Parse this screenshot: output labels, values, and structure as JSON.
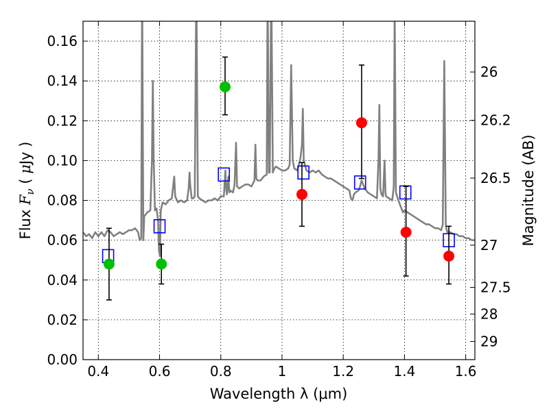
{
  "chart_data": {
    "type": "scatter",
    "xlabel": "Wavelength  λ (μm)",
    "ylabel": "Flux  F_ν  ( μJy )",
    "ylabel_parts": [
      "Flux ",
      "F",
      "ν",
      "  ( ",
      "μ",
      "Jy )"
    ],
    "y2label": "Magnitude (AB)",
    "xlim": [
      0.35,
      1.63
    ],
    "ylim": [
      0.0,
      0.17
    ],
    "grid": true,
    "xticks": [
      0.4,
      0.6,
      0.8,
      1.0,
      1.2,
      1.4,
      1.6
    ],
    "xtick_labels": [
      "0.4",
      "0.6",
      "0.8",
      "1",
      "1.2",
      "1.4",
      "1.6"
    ],
    "yticks": [
      0.0,
      0.02,
      0.04,
      0.06,
      0.08,
      0.1,
      0.12,
      0.14,
      0.16
    ],
    "ytick_labels": [
      "0.00",
      "0.02",
      "0.04",
      "0.06",
      "0.08",
      "0.10",
      "0.12",
      "0.14",
      "0.16"
    ],
    "mag_ticks": [
      {
        "label": "26",
        "flux": 0.1445
      },
      {
        "label": "26.2",
        "flux": 0.1202
      },
      {
        "label": "26.5",
        "flux": 0.0912
      },
      {
        "label": "27",
        "flux": 0.0575
      },
      {
        "label": "27.5",
        "flux": 0.0363
      },
      {
        "label": "28",
        "flux": 0.0229
      },
      {
        "label": "29",
        "flux": 0.0091
      }
    ],
    "colors": {
      "spectrum": "#808080",
      "green": "#00c000",
      "red": "#ff0000",
      "model": "#0000ff",
      "errorbar": "#000000"
    },
    "series": [
      {
        "marker": "green-circle",
        "points": [
          {
            "x": 0.435,
            "y": 0.048,
            "yerr_low": 0.03,
            "yerr_high": 0.066
          },
          {
            "x": 0.606,
            "y": 0.048,
            "yerr_low": 0.038,
            "yerr_high": 0.058
          },
          {
            "x": 0.814,
            "y": 0.137,
            "yerr_low": 0.123,
            "yerr_high": 0.152
          }
        ]
      },
      {
        "marker": "red-circle",
        "points": [
          {
            "x": 1.065,
            "y": 0.083,
            "yerr_low": 0.067,
            "yerr_high": 0.099
          },
          {
            "x": 1.26,
            "y": 0.119,
            "yerr_low": 0.091,
            "yerr_high": 0.148
          },
          {
            "x": 1.405,
            "y": 0.064,
            "yerr_low": 0.042,
            "yerr_high": 0.087
          },
          {
            "x": 1.545,
            "y": 0.052,
            "yerr_low": 0.038,
            "yerr_high": 0.067
          }
        ]
      },
      {
        "marker": "blue-open-square",
        "points": [
          {
            "x": 0.432,
            "y": 0.052
          },
          {
            "x": 0.6,
            "y": 0.067
          },
          {
            "x": 0.81,
            "y": 0.093
          },
          {
            "x": 1.07,
            "y": 0.094
          },
          {
            "x": 1.255,
            "y": 0.089
          },
          {
            "x": 1.403,
            "y": 0.084
          },
          {
            "x": 1.545,
            "y": 0.06
          }
        ]
      }
    ],
    "spectrum": [
      [
        0.35,
        0.064
      ],
      [
        0.36,
        0.062
      ],
      [
        0.37,
        0.063
      ],
      [
        0.38,
        0.061
      ],
      [
        0.39,
        0.064
      ],
      [
        0.4,
        0.062
      ],
      [
        0.41,
        0.064
      ],
      [
        0.42,
        0.062
      ],
      [
        0.43,
        0.065
      ],
      [
        0.44,
        0.064
      ],
      [
        0.45,
        0.062
      ],
      [
        0.46,
        0.063
      ],
      [
        0.47,
        0.064
      ],
      [
        0.48,
        0.063
      ],
      [
        0.49,
        0.064
      ],
      [
        0.5,
        0.065
      ],
      [
        0.51,
        0.065
      ],
      [
        0.52,
        0.066
      ],
      [
        0.53,
        0.064
      ],
      [
        0.535,
        0.06
      ],
      [
        0.54,
        0.061
      ],
      [
        0.543,
        0.19
      ],
      [
        0.547,
        0.06
      ],
      [
        0.55,
        0.072
      ],
      [
        0.56,
        0.074
      ],
      [
        0.57,
        0.075
      ],
      [
        0.575,
        0.1
      ],
      [
        0.578,
        0.14
      ],
      [
        0.581,
        0.1
      ],
      [
        0.585,
        0.075
      ],
      [
        0.59,
        0.076
      ],
      [
        0.595,
        0.07
      ],
      [
        0.598,
        0.055
      ],
      [
        0.601,
        0.052
      ],
      [
        0.604,
        0.075
      ],
      [
        0.61,
        0.079
      ],
      [
        0.62,
        0.078
      ],
      [
        0.63,
        0.08
      ],
      [
        0.64,
        0.081
      ],
      [
        0.645,
        0.088
      ],
      [
        0.648,
        0.092
      ],
      [
        0.651,
        0.082
      ],
      [
        0.66,
        0.079
      ],
      [
        0.67,
        0.08
      ],
      [
        0.68,
        0.079
      ],
      [
        0.69,
        0.08
      ],
      [
        0.695,
        0.086
      ],
      [
        0.698,
        0.094
      ],
      [
        0.7,
        0.088
      ],
      [
        0.705,
        0.081
      ],
      [
        0.71,
        0.081
      ],
      [
        0.715,
        0.082
      ],
      [
        0.72,
        0.19
      ],
      [
        0.725,
        0.082
      ],
      [
        0.73,
        0.081
      ],
      [
        0.74,
        0.08
      ],
      [
        0.75,
        0.079
      ],
      [
        0.76,
        0.08
      ],
      [
        0.77,
        0.08
      ],
      [
        0.78,
        0.081
      ],
      [
        0.79,
        0.08
      ],
      [
        0.8,
        0.082
      ],
      [
        0.81,
        0.082
      ],
      [
        0.815,
        0.095
      ],
      [
        0.818,
        0.085
      ],
      [
        0.82,
        0.083
      ],
      [
        0.825,
        0.092
      ],
      [
        0.828,
        0.084
      ],
      [
        0.83,
        0.085
      ],
      [
        0.84,
        0.084
      ],
      [
        0.845,
        0.088
      ],
      [
        0.85,
        0.109
      ],
      [
        0.853,
        0.087
      ],
      [
        0.86,
        0.086
      ],
      [
        0.87,
        0.087
      ],
      [
        0.88,
        0.088
      ],
      [
        0.89,
        0.088
      ],
      [
        0.9,
        0.087
      ],
      [
        0.91,
        0.09
      ],
      [
        0.913,
        0.108
      ],
      [
        0.916,
        0.091
      ],
      [
        0.92,
        0.09
      ],
      [
        0.93,
        0.09
      ],
      [
        0.94,
        0.092
      ],
      [
        0.95,
        0.093
      ],
      [
        0.953,
        0.19
      ],
      [
        0.957,
        0.094
      ],
      [
        0.96,
        0.094
      ],
      [
        0.965,
        0.19
      ],
      [
        0.97,
        0.094
      ],
      [
        0.975,
        0.096
      ],
      [
        0.98,
        0.097
      ],
      [
        0.99,
        0.096
      ],
      [
        1.0,
        0.095
      ],
      [
        1.01,
        0.095
      ],
      [
        1.02,
        0.096
      ],
      [
        1.025,
        0.098
      ],
      [
        1.03,
        0.148
      ],
      [
        1.035,
        0.1
      ],
      [
        1.04,
        0.096
      ],
      [
        1.05,
        0.095
      ],
      [
        1.055,
        0.098
      ],
      [
        1.06,
        0.101
      ],
      [
        1.065,
        0.108
      ],
      [
        1.068,
        0.126
      ],
      [
        1.071,
        0.1
      ],
      [
        1.08,
        0.095
      ],
      [
        1.09,
        0.094
      ],
      [
        1.1,
        0.095
      ],
      [
        1.11,
        0.094
      ],
      [
        1.12,
        0.095
      ],
      [
        1.13,
        0.093
      ],
      [
        1.14,
        0.092
      ],
      [
        1.15,
        0.091
      ],
      [
        1.16,
        0.091
      ],
      [
        1.17,
        0.09
      ],
      [
        1.18,
        0.089
      ],
      [
        1.19,
        0.088
      ],
      [
        1.2,
        0.087
      ],
      [
        1.21,
        0.086
      ],
      [
        1.22,
        0.085
      ],
      [
        1.225,
        0.081
      ],
      [
        1.23,
        0.08
      ],
      [
        1.235,
        0.083
      ],
      [
        1.24,
        0.084
      ],
      [
        1.25,
        0.085
      ],
      [
        1.255,
        0.087
      ],
      [
        1.26,
        0.09
      ],
      [
        1.265,
        0.088
      ],
      [
        1.27,
        0.086
      ],
      [
        1.28,
        0.084
      ],
      [
        1.29,
        0.083
      ],
      [
        1.3,
        0.082
      ],
      [
        1.31,
        0.081
      ],
      [
        1.315,
        0.1
      ],
      [
        1.318,
        0.128
      ],
      [
        1.321,
        0.086
      ],
      [
        1.325,
        0.083
      ],
      [
        1.33,
        0.082
      ],
      [
        1.335,
        0.1
      ],
      [
        1.338,
        0.084
      ],
      [
        1.34,
        0.082
      ],
      [
        1.35,
        0.081
      ],
      [
        1.36,
        0.08
      ],
      [
        1.365,
        0.087
      ],
      [
        1.368,
        0.18
      ],
      [
        1.372,
        0.084
      ],
      [
        1.38,
        0.08
      ],
      [
        1.385,
        0.078
      ],
      [
        1.39,
        0.076
      ],
      [
        1.395,
        0.074
      ],
      [
        1.4,
        0.075
      ],
      [
        1.41,
        0.074
      ],
      [
        1.42,
        0.073
      ],
      [
        1.43,
        0.072
      ],
      [
        1.44,
        0.071
      ],
      [
        1.45,
        0.07
      ],
      [
        1.46,
        0.069
      ],
      [
        1.47,
        0.068
      ],
      [
        1.48,
        0.068
      ],
      [
        1.49,
        0.067
      ],
      [
        1.5,
        0.066
      ],
      [
        1.51,
        0.066
      ],
      [
        1.52,
        0.065
      ],
      [
        1.525,
        0.068
      ],
      [
        1.53,
        0.15
      ],
      [
        1.535,
        0.067
      ],
      [
        1.54,
        0.064
      ],
      [
        1.55,
        0.064
      ],
      [
        1.56,
        0.063
      ],
      [
        1.57,
        0.063
      ],
      [
        1.58,
        0.062
      ],
      [
        1.59,
        0.062
      ],
      [
        1.6,
        0.061
      ],
      [
        1.61,
        0.061
      ],
      [
        1.62,
        0.06
      ],
      [
        1.63,
        0.06
      ]
    ]
  }
}
